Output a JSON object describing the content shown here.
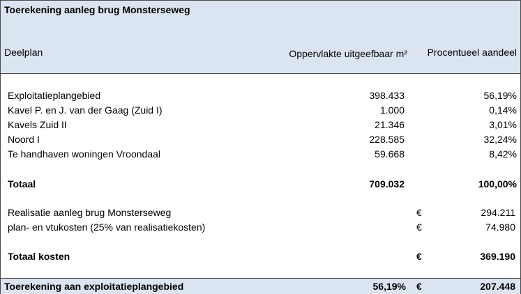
{
  "title": "Toerekening aanleg brug Monsterseweg",
  "headers": {
    "deelplan": "Deelplan",
    "oppervlakte": "Oppervlakte uitgeefbaar m²",
    "aandeel": "Procentueel aandeel"
  },
  "rows": [
    {
      "label": "Exploitatieplangebied",
      "opp": "398.433",
      "pct": "56,19%"
    },
    {
      "label": "Kavel P. en J. van der Gaag (Zuid I)",
      "opp": "1.000",
      "pct": "0,14%"
    },
    {
      "label": "Kavels Zuid II",
      "opp": "21.346",
      "pct": "3,01%"
    },
    {
      "label": "Noord I",
      "opp": "228.585",
      "pct": "32,24%"
    },
    {
      "label": "Te handhaven woningen Vroondaal",
      "opp": "59.668",
      "pct": "8,42%"
    }
  ],
  "totaal": {
    "label": "Totaal",
    "opp": "709.032",
    "pct": "100,00%"
  },
  "costs": [
    {
      "label": "Realisatie aanleg brug Monsterseweg",
      "currency": "€",
      "amount": "294.211"
    },
    {
      "label": "plan- en vtukosten (25% van realisatiekosten)",
      "currency": "€",
      "amount": "74.980"
    }
  ],
  "totaal_kosten": {
    "label": "Totaal kosten",
    "currency": "€",
    "amount": "369.190"
  },
  "toerekening": {
    "label": "Toerekening aan exploitatieplangebied",
    "pct": "56,19%",
    "currency": "€",
    "amount": "207.448"
  }
}
